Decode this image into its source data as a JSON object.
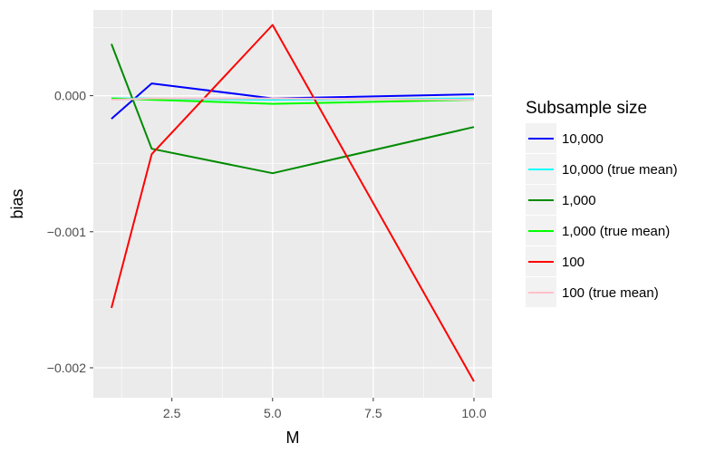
{
  "chart_data": {
    "type": "line",
    "title": "",
    "xlabel": "M",
    "ylabel": "bias",
    "xlim": [
      0.55,
      10.45
    ],
    "ylim": [
      -0.00222,
      0.00063
    ],
    "grid": true,
    "x_ticks": [
      2.5,
      5.0,
      7.5,
      10.0
    ],
    "x_tick_labels": [
      "2.5",
      "5.0",
      "7.5",
      "10.0"
    ],
    "y_ticks": [
      0.0,
      -0.001,
      -0.002
    ],
    "y_tick_labels": [
      "0.000",
      "−0.001",
      "−0.002"
    ],
    "legend": {
      "title": "Subsample size",
      "position": "right"
    },
    "series": [
      {
        "name": "10,000",
        "color": "#0000ff",
        "x": [
          1,
          2,
          5,
          10
        ],
        "y": [
          -0.00017,
          9e-05,
          -2e-05,
          1e-05
        ]
      },
      {
        "name": "10,000 (true mean)",
        "color": "#00ffff",
        "x": [
          1,
          2,
          5,
          10
        ],
        "y": [
          -2e-05,
          -2e-05,
          -3e-05,
          -2e-05
        ]
      },
      {
        "name": "1,000",
        "color": "#008b00",
        "x": [
          1,
          2,
          5,
          10
        ],
        "y": [
          0.00038,
          -0.00039,
          -0.00057,
          -0.00023
        ]
      },
      {
        "name": "1,000 (true mean)",
        "color": "#00ff00",
        "x": [
          1,
          2,
          5,
          10
        ],
        "y": [
          -2e-05,
          -3e-05,
          -6e-05,
          -3e-05
        ]
      },
      {
        "name": "100",
        "color": "#ff0000",
        "x": [
          1,
          2,
          5,
          10
        ],
        "y": [
          -0.00156,
          -0.00043,
          0.00052,
          -0.0021
        ]
      },
      {
        "name": "100 (true mean)",
        "color": "#ffc0cb",
        "x": [
          1,
          2,
          5,
          10
        ],
        "y": [
          -3e-05,
          -2e-05,
          -2e-05,
          -3e-05
        ]
      }
    ]
  }
}
